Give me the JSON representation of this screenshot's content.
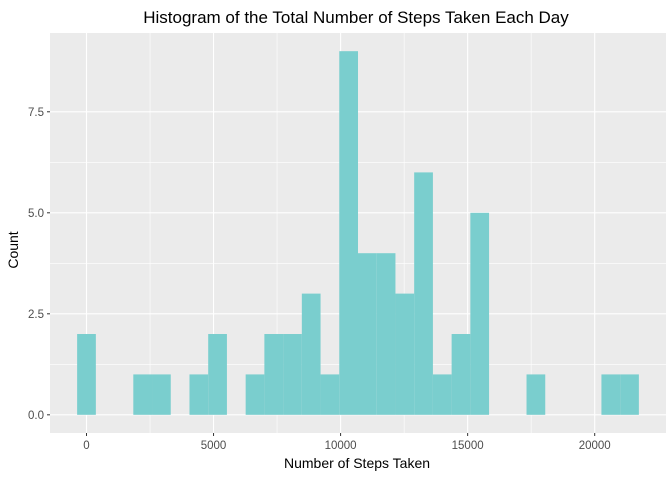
{
  "chart_data": {
    "type": "bar",
    "title": "Histogram of the Total Number of Steps Taken Each Day",
    "xlabel": "Number of Steps Taken",
    "ylabel": "Count",
    "bin_width": 736.9,
    "bins": [
      {
        "center": 0,
        "count": 2
      },
      {
        "center": 736.9,
        "count": 0
      },
      {
        "center": 1473.8,
        "count": 0
      },
      {
        "center": 2210.7,
        "count": 1
      },
      {
        "center": 2947.6,
        "count": 1
      },
      {
        "center": 3684.5,
        "count": 0
      },
      {
        "center": 4421.4,
        "count": 1
      },
      {
        "center": 5158.3,
        "count": 2
      },
      {
        "center": 5895.2,
        "count": 0
      },
      {
        "center": 6632.1,
        "count": 1
      },
      {
        "center": 7369.0,
        "count": 2
      },
      {
        "center": 8105.9,
        "count": 2
      },
      {
        "center": 8842.8,
        "count": 3
      },
      {
        "center": 9579.7,
        "count": 1
      },
      {
        "center": 10316.6,
        "count": 9
      },
      {
        "center": 11053.5,
        "count": 4
      },
      {
        "center": 11790.4,
        "count": 4
      },
      {
        "center": 12527.3,
        "count": 3
      },
      {
        "center": 13264.2,
        "count": 6
      },
      {
        "center": 14001.1,
        "count": 1
      },
      {
        "center": 14738.0,
        "count": 2
      },
      {
        "center": 15474.9,
        "count": 5
      },
      {
        "center": 16211.8,
        "count": 0
      },
      {
        "center": 16948.7,
        "count": 0
      },
      {
        "center": 17685.6,
        "count": 1
      },
      {
        "center": 18422.5,
        "count": 0
      },
      {
        "center": 19159.4,
        "count": 0
      },
      {
        "center": 19896.3,
        "count": 0
      },
      {
        "center": 20633.2,
        "count": 1
      },
      {
        "center": 21370.1,
        "count": 1
      }
    ],
    "xlim": [
      -1436,
      22806
    ],
    "ylim": [
      -0.45,
      9.45
    ],
    "x_ticks": [
      {
        "value": 0,
        "label": "0"
      },
      {
        "value": 5000,
        "label": "5000"
      },
      {
        "value": 10000,
        "label": "10000"
      },
      {
        "value": 15000,
        "label": "15000"
      },
      {
        "value": 20000,
        "label": "20000"
      }
    ],
    "y_ticks": [
      {
        "value": 0,
        "label": "0.0"
      },
      {
        "value": 2.5,
        "label": "2.5"
      },
      {
        "value": 5,
        "label": "5.0"
      },
      {
        "value": 7.5,
        "label": "7.5"
      }
    ],
    "grid": true,
    "bar_color": "#7ACECE",
    "panel_color": "#EBEBEB",
    "grid_color": "#FFFFFF"
  }
}
